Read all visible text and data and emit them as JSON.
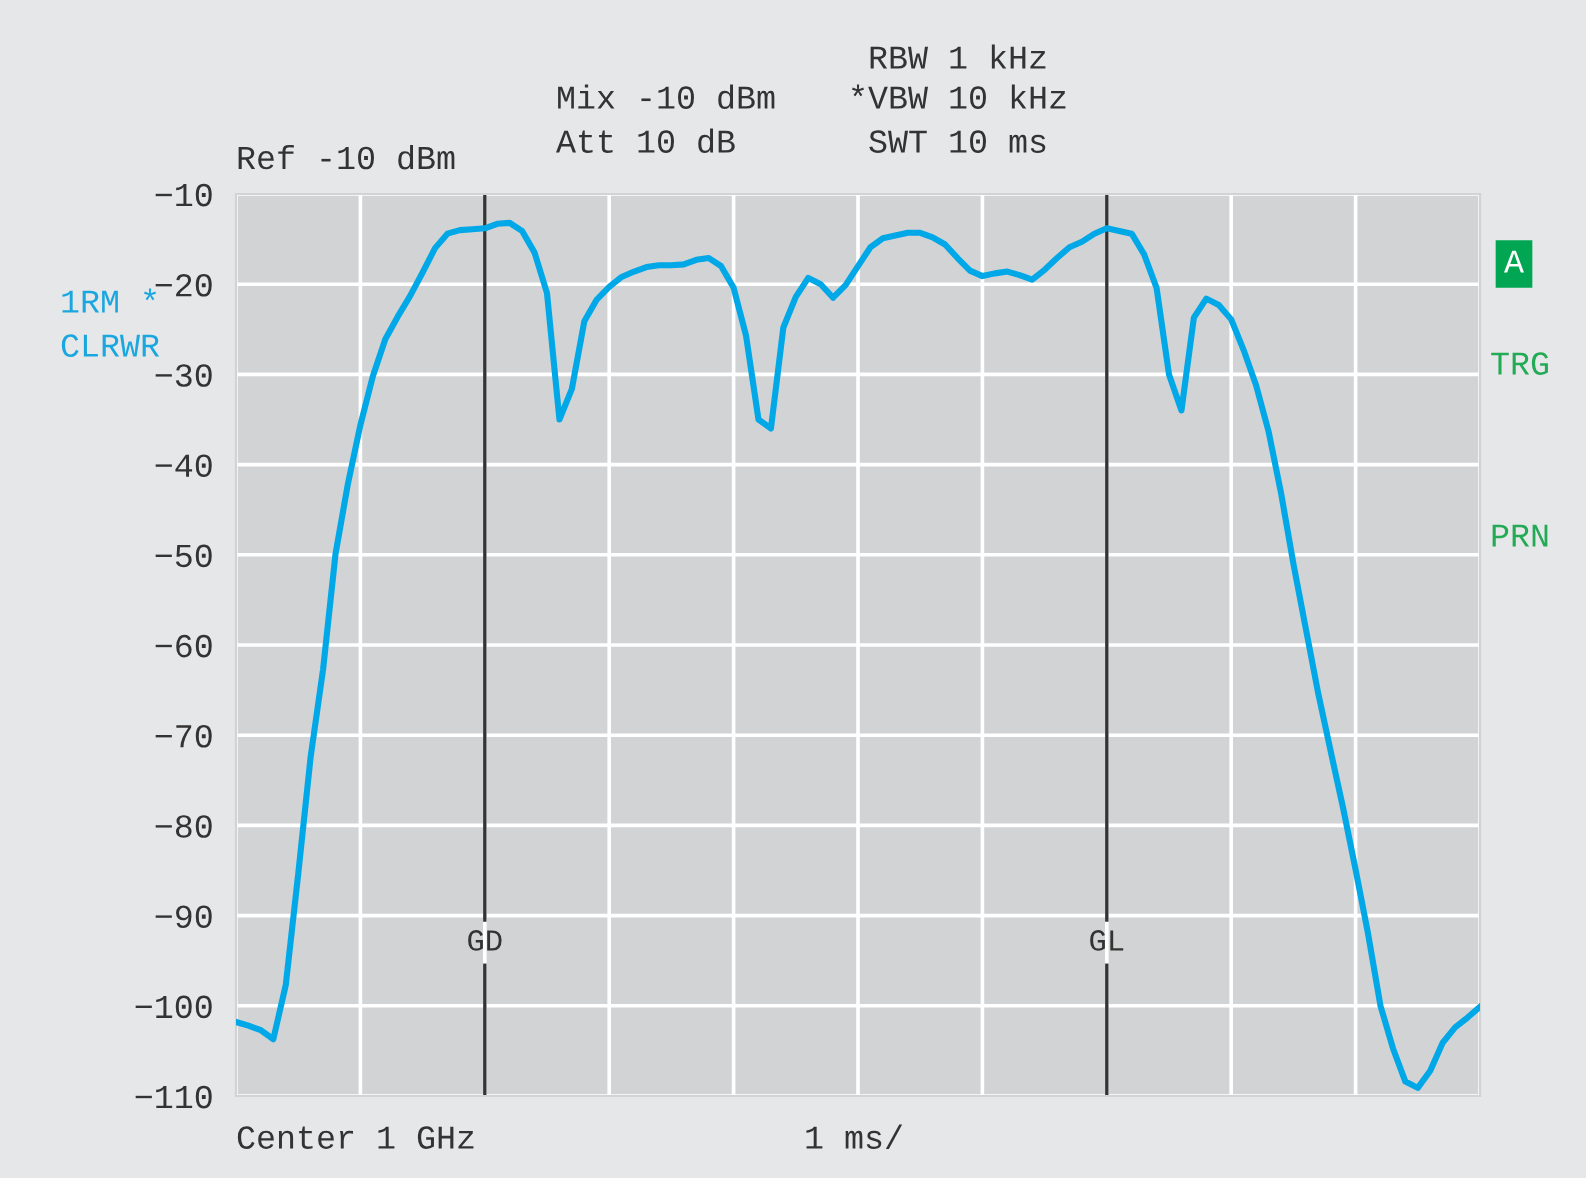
{
  "chart_data": {
    "type": "line",
    "title": "Ref -10 dBm",
    "categories": [
      null,
      null,
      null,
      null,
      null,
      null,
      null,
      null,
      null,
      null,
      null,
      null,
      null,
      null,
      null,
      null,
      null,
      null,
      null,
      null,
      null,
      null,
      null,
      null,
      null,
      null,
      null,
      null,
      null,
      null,
      null,
      null,
      null,
      null,
      null,
      null,
      null,
      null,
      null,
      null,
      null,
      null,
      null,
      null,
      null,
      null,
      null,
      null,
      null,
      null,
      null,
      null,
      null,
      null,
      null,
      null,
      null,
      null,
      null,
      null,
      null,
      null,
      null,
      null,
      null,
      null,
      null,
      null,
      null,
      null,
      null,
      null,
      null,
      null,
      null,
      null,
      null,
      null,
      null,
      null,
      null,
      null,
      null,
      null,
      null,
      null,
      null,
      null,
      null,
      null,
      null,
      null,
      null,
      null,
      null,
      null,
      null,
      null,
      null,
      null,
      null
    ],
    "series": [
      {
        "color": "#00a8e8",
        "values": [
          -101.8,
          -102.2,
          -102.7,
          -103.7,
          -97.7,
          -85.4,
          -72.4,
          -62.7,
          -49.9,
          -42.1,
          -35.6,
          -30.2,
          -26.1,
          -23.6,
          -21.3,
          -18.7,
          -16.0,
          -14.4,
          -14.0,
          -13.9,
          -13.8,
          -13.3,
          -13.2,
          -14.1,
          -16.5,
          -21.0,
          -35.0,
          -31.6,
          -24.1,
          -21.7,
          -20.3,
          -19.2,
          -18.6,
          -18.1,
          -17.9,
          -17.9,
          -17.8,
          -17.3,
          -17.1,
          -18.0,
          -20.4,
          -25.7,
          -35.0,
          -36.0,
          -24.8,
          -21.4,
          -19.3,
          -20.0,
          -21.5,
          -20.1,
          -18.0,
          -15.9,
          -14.9,
          -14.6,
          -14.3,
          -14.3,
          -14.8,
          -15.6,
          -17.1,
          -18.5,
          -19.1,
          -18.8,
          -18.6,
          -19.0,
          -19.5,
          -18.4,
          -17.1,
          -15.9,
          -15.3,
          -14.4,
          -13.8,
          -14.1,
          -14.4,
          -16.7,
          -20.4,
          -30.0,
          -34.0,
          -23.7,
          -21.6,
          -22.3,
          -23.9,
          -27.3,
          -31.2,
          -36.3,
          -43.1,
          -51.0,
          -58.2,
          -65.4,
          -71.8,
          -78.1,
          -84.9,
          -92.0,
          -100.0,
          -104.7,
          -108.4,
          -109.1,
          -107.2,
          -104.1,
          -102.4,
          -101.3,
          -100.1
        ]
      }
    ],
    "ylim": [
      -110,
      -10
    ],
    "yticks": [
      {
        "value": -10,
        "label": "−10"
      },
      {
        "value": -20,
        "label": "−20"
      },
      {
        "value": -30,
        "label": "−30"
      },
      {
        "value": -40,
        "label": "−40"
      },
      {
        "value": -50,
        "label": "−50"
      },
      {
        "value": -60,
        "label": "−60"
      },
      {
        "value": -70,
        "label": "−70"
      },
      {
        "value": -80,
        "label": "−80"
      },
      {
        "value": -90,
        "label": "−90"
      },
      {
        "value": -100,
        "label": "−100"
      },
      {
        "value": -110,
        "label": "−110"
      }
    ],
    "grid": true,
    "tick_labels": "y",
    "marker": "none",
    "line_style": "solid",
    "annotations": [
      "Mix -10 dBm",
      "Att 10 dB",
      "RBW 1 kHz",
      "*VBW 10 kHz",
      "SWT 10 ms",
      "1RM *",
      "CLRWR",
      "A",
      "TRG",
      "PRN",
      "Center 1 GHz",
      "1 ms/",
      "GD",
      "GL"
    ]
  }
}
